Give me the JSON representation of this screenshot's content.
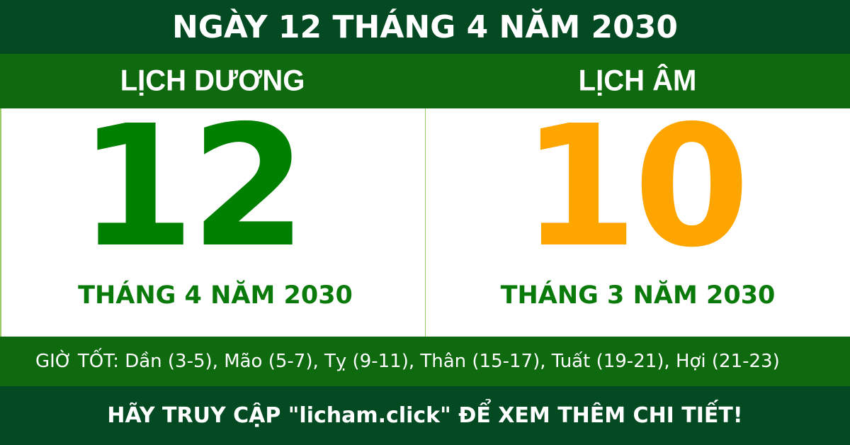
{
  "header": {
    "title": "NGÀY 12 THÁNG 4 NĂM 2030"
  },
  "solar": {
    "heading": "LỊCH DƯƠNG",
    "day": "12",
    "month_year": "THÁNG 4 NĂM 2030"
  },
  "lunar": {
    "heading": "LỊCH ÂM",
    "day": "10",
    "month_year": "THÁNG 3 NĂM 2030"
  },
  "good_hours": "GIỜ TỐT: Dần (3-5), Mão (5-7), Tỵ (9-11), Thân (15-17), Tuất (19-21), Hợi (21-23)",
  "footer": "HÃY TRUY CẬP \"licham.click\" ĐỂ XEM THÊM CHI TIẾT!",
  "colors": {
    "dark_green": "#034a22",
    "green": "#0f6a0f",
    "solar_day": "#008000",
    "lunar_day": "#ffa500"
  }
}
